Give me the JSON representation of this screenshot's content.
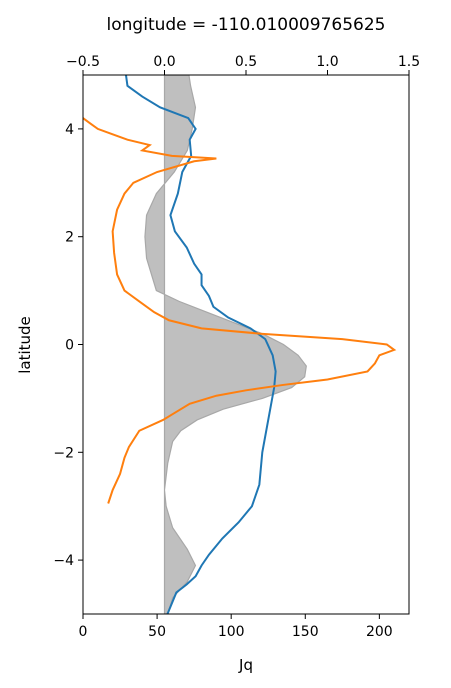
{
  "chart_data": {
    "type": "line",
    "title": "longitude = -110.010009765625",
    "xlabel": "Jq",
    "ylabel": "latitude",
    "xlim": [
      0,
      220
    ],
    "ylim": [
      -5,
      5
    ],
    "xticks": [
      0,
      50,
      100,
      150,
      200
    ],
    "xtick_labels": [
      "0",
      "50",
      "100",
      "150",
      "200"
    ],
    "yticks": [
      -4,
      -2,
      0,
      2,
      4
    ],
    "ytick_labels": [
      "−4",
      "−2",
      "0",
      "2",
      "4"
    ],
    "top_axis": {
      "xlim": [
        -0.5,
        1.5
      ],
      "xticks": [
        -0.5,
        0.0,
        0.5,
        1.0,
        1.5
      ],
      "xtick_labels": [
        "−0.5",
        "0.0",
        "0.5",
        "1.0",
        "1.5"
      ]
    },
    "fill": {
      "color": "#bfbfbf",
      "edge_color": "#a8a8a8",
      "baseline_top_axis": 0.0,
      "top_axis_values_vs_latitude": [
        [
          -5.0,
          0.02
        ],
        [
          -4.7,
          0.05
        ],
        [
          -4.4,
          0.14
        ],
        [
          -4.1,
          0.19
        ],
        [
          -3.8,
          0.14
        ],
        [
          -3.4,
          0.05
        ],
        [
          -3.0,
          0.01
        ],
        [
          -2.7,
          0.0
        ],
        [
          -2.2,
          0.02
        ],
        [
          -1.8,
          0.05
        ],
        [
          -1.6,
          0.1
        ],
        [
          -1.4,
          0.2
        ],
        [
          -1.2,
          0.36
        ],
        [
          -1.0,
          0.6
        ],
        [
          -0.8,
          0.78
        ],
        [
          -0.6,
          0.86
        ],
        [
          -0.4,
          0.87
        ],
        [
          -0.2,
          0.82
        ],
        [
          0.0,
          0.73
        ],
        [
          0.2,
          0.6
        ],
        [
          0.4,
          0.43
        ],
        [
          0.6,
          0.26
        ],
        [
          0.8,
          0.09
        ],
        [
          1.0,
          -0.05
        ],
        [
          1.3,
          -0.08
        ],
        [
          1.6,
          -0.11
        ],
        [
          2.0,
          -0.12
        ],
        [
          2.4,
          -0.11
        ],
        [
          2.8,
          -0.05
        ],
        [
          3.2,
          0.06
        ],
        [
          3.6,
          0.14
        ],
        [
          4.0,
          0.17
        ],
        [
          4.4,
          0.19
        ],
        [
          4.8,
          0.16
        ],
        [
          5.0,
          0.15
        ]
      ]
    },
    "series": [
      {
        "color": "#1f77b4",
        "x_vs_latitude": [
          [
            -5.0,
            57
          ],
          [
            -4.8,
            60
          ],
          [
            -4.6,
            63
          ],
          [
            -4.45,
            70
          ],
          [
            -4.3,
            76
          ],
          [
            -4.1,
            80
          ],
          [
            -3.9,
            85
          ],
          [
            -3.6,
            94
          ],
          [
            -3.3,
            105
          ],
          [
            -3.0,
            114
          ],
          [
            -2.6,
            119
          ],
          [
            -2.0,
            121
          ],
          [
            -1.4,
            125
          ],
          [
            -0.8,
            129
          ],
          [
            -0.5,
            130
          ],
          [
            -0.2,
            128
          ],
          [
            0.1,
            123
          ],
          [
            0.3,
            113
          ],
          [
            0.5,
            98
          ],
          [
            0.7,
            88
          ],
          [
            0.9,
            85
          ],
          [
            1.1,
            80
          ],
          [
            1.3,
            80
          ],
          [
            1.5,
            75
          ],
          [
            1.8,
            70
          ],
          [
            2.1,
            62
          ],
          [
            2.4,
            59
          ],
          [
            2.8,
            64
          ],
          [
            3.2,
            67
          ],
          [
            3.5,
            73
          ],
          [
            3.8,
            72
          ],
          [
            4.0,
            76
          ],
          [
            4.2,
            71
          ],
          [
            4.4,
            52
          ],
          [
            4.6,
            40
          ],
          [
            4.8,
            30
          ],
          [
            5.0,
            29
          ]
        ]
      },
      {
        "color": "#ff7f0e",
        "x_vs_latitude": [
          [
            -2.95,
            17
          ],
          [
            -2.7,
            20
          ],
          [
            -2.4,
            25
          ],
          [
            -2.1,
            28
          ],
          [
            -1.9,
            31
          ],
          [
            -1.6,
            38
          ],
          [
            -1.4,
            54
          ],
          [
            -1.3,
            60
          ],
          [
            -1.1,
            72
          ],
          [
            -0.95,
            90
          ],
          [
            -0.85,
            110
          ],
          [
            -0.75,
            135
          ],
          [
            -0.65,
            165
          ],
          [
            -0.5,
            192
          ],
          [
            -0.35,
            197
          ],
          [
            -0.2,
            200
          ],
          [
            -0.1,
            210
          ],
          [
            0.0,
            205
          ],
          [
            0.1,
            175
          ],
          [
            0.2,
            120
          ],
          [
            0.3,
            80
          ],
          [
            0.45,
            58
          ],
          [
            0.6,
            48
          ],
          [
            0.8,
            38
          ],
          [
            1.0,
            28
          ],
          [
            1.3,
            23
          ],
          [
            1.7,
            21
          ],
          [
            2.1,
            20
          ],
          [
            2.5,
            23
          ],
          [
            2.8,
            28
          ],
          [
            3.0,
            34
          ],
          [
            3.2,
            50
          ],
          [
            3.4,
            75
          ],
          [
            3.45,
            90
          ],
          [
            3.5,
            60
          ],
          [
            3.6,
            40
          ],
          [
            3.7,
            45
          ],
          [
            3.8,
            30
          ],
          [
            3.9,
            20
          ],
          [
            4.0,
            10
          ],
          [
            4.1,
            5
          ],
          [
            4.2,
            0
          ]
        ]
      }
    ]
  }
}
